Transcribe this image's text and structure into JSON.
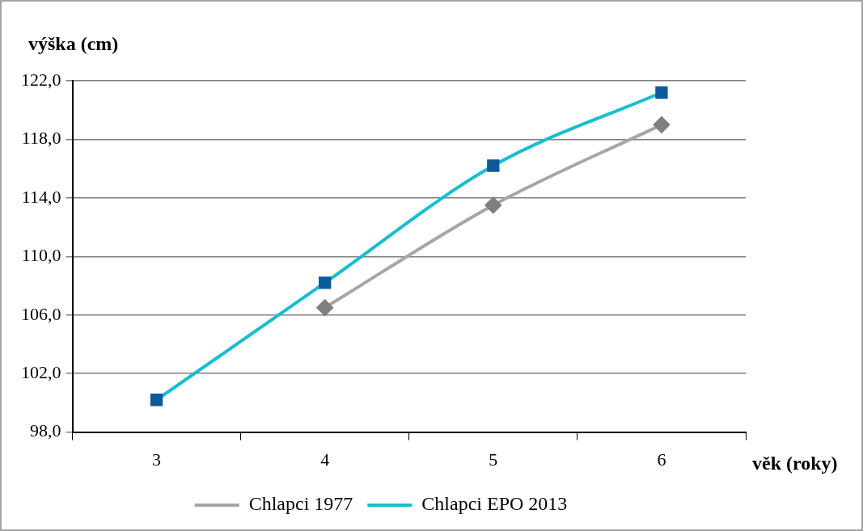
{
  "chart_data": {
    "type": "line",
    "ylabel": "výška (cm)",
    "xlabel": "věk (roky)",
    "categories": [
      "3",
      "4",
      "5",
      "6"
    ],
    "series": [
      {
        "name": "Chlapci 1977",
        "color": "#a6a6a6",
        "marker": "diamond",
        "values": [
          null,
          106.5,
          113.5,
          119.0
        ]
      },
      {
        "name": "Chlapci EPO 2013",
        "color": "#17becf",
        "marker": "square",
        "values": [
          100.2,
          108.2,
          116.2,
          121.2
        ]
      }
    ],
    "ylim": [
      98,
      122
    ],
    "yticks": [
      {
        "value": 98,
        "label": "98,0"
      },
      {
        "value": 102,
        "label": "102,0"
      },
      {
        "value": 106,
        "label": "106,0"
      },
      {
        "value": 110,
        "label": "110,0"
      },
      {
        "value": 114,
        "label": "114,0"
      },
      {
        "value": 118,
        "label": "118,0"
      },
      {
        "value": 122,
        "label": "122,0"
      }
    ],
    "grid": "y",
    "legend": "bottom",
    "line_style": "solid"
  }
}
